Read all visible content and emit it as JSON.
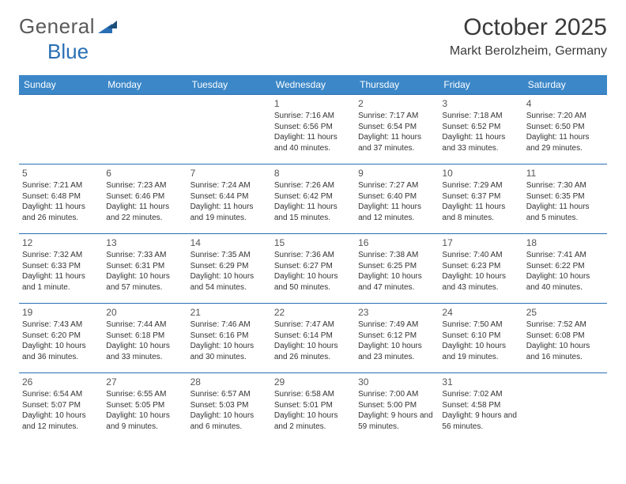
{
  "logo": {
    "part1": "General",
    "part2": "Blue"
  },
  "title": {
    "month": "October 2025",
    "location": "Markt Berolzheim, Germany"
  },
  "colors": {
    "header_bg": "#3b87c8",
    "header_text": "#ffffff",
    "border": "#2a6fb5",
    "page_bg": "#ffffff",
    "text": "#333333",
    "logo_gray": "#5a5a5a",
    "logo_blue": "#2a6fb5"
  },
  "weekdays": [
    "Sunday",
    "Monday",
    "Tuesday",
    "Wednesday",
    "Thursday",
    "Friday",
    "Saturday"
  ],
  "weeks": [
    [
      null,
      null,
      null,
      {
        "n": "1",
        "sr": "Sunrise: 7:16 AM",
        "ss": "Sunset: 6:56 PM",
        "dl": "Daylight: 11 hours and 40 minutes."
      },
      {
        "n": "2",
        "sr": "Sunrise: 7:17 AM",
        "ss": "Sunset: 6:54 PM",
        "dl": "Daylight: 11 hours and 37 minutes."
      },
      {
        "n": "3",
        "sr": "Sunrise: 7:18 AM",
        "ss": "Sunset: 6:52 PM",
        "dl": "Daylight: 11 hours and 33 minutes."
      },
      {
        "n": "4",
        "sr": "Sunrise: 7:20 AM",
        "ss": "Sunset: 6:50 PM",
        "dl": "Daylight: 11 hours and 29 minutes."
      }
    ],
    [
      {
        "n": "5",
        "sr": "Sunrise: 7:21 AM",
        "ss": "Sunset: 6:48 PM",
        "dl": "Daylight: 11 hours and 26 minutes."
      },
      {
        "n": "6",
        "sr": "Sunrise: 7:23 AM",
        "ss": "Sunset: 6:46 PM",
        "dl": "Daylight: 11 hours and 22 minutes."
      },
      {
        "n": "7",
        "sr": "Sunrise: 7:24 AM",
        "ss": "Sunset: 6:44 PM",
        "dl": "Daylight: 11 hours and 19 minutes."
      },
      {
        "n": "8",
        "sr": "Sunrise: 7:26 AM",
        "ss": "Sunset: 6:42 PM",
        "dl": "Daylight: 11 hours and 15 minutes."
      },
      {
        "n": "9",
        "sr": "Sunrise: 7:27 AM",
        "ss": "Sunset: 6:40 PM",
        "dl": "Daylight: 11 hours and 12 minutes."
      },
      {
        "n": "10",
        "sr": "Sunrise: 7:29 AM",
        "ss": "Sunset: 6:37 PM",
        "dl": "Daylight: 11 hours and 8 minutes."
      },
      {
        "n": "11",
        "sr": "Sunrise: 7:30 AM",
        "ss": "Sunset: 6:35 PM",
        "dl": "Daylight: 11 hours and 5 minutes."
      }
    ],
    [
      {
        "n": "12",
        "sr": "Sunrise: 7:32 AM",
        "ss": "Sunset: 6:33 PM",
        "dl": "Daylight: 11 hours and 1 minute."
      },
      {
        "n": "13",
        "sr": "Sunrise: 7:33 AM",
        "ss": "Sunset: 6:31 PM",
        "dl": "Daylight: 10 hours and 57 minutes."
      },
      {
        "n": "14",
        "sr": "Sunrise: 7:35 AM",
        "ss": "Sunset: 6:29 PM",
        "dl": "Daylight: 10 hours and 54 minutes."
      },
      {
        "n": "15",
        "sr": "Sunrise: 7:36 AM",
        "ss": "Sunset: 6:27 PM",
        "dl": "Daylight: 10 hours and 50 minutes."
      },
      {
        "n": "16",
        "sr": "Sunrise: 7:38 AM",
        "ss": "Sunset: 6:25 PM",
        "dl": "Daylight: 10 hours and 47 minutes."
      },
      {
        "n": "17",
        "sr": "Sunrise: 7:40 AM",
        "ss": "Sunset: 6:23 PM",
        "dl": "Daylight: 10 hours and 43 minutes."
      },
      {
        "n": "18",
        "sr": "Sunrise: 7:41 AM",
        "ss": "Sunset: 6:22 PM",
        "dl": "Daylight: 10 hours and 40 minutes."
      }
    ],
    [
      {
        "n": "19",
        "sr": "Sunrise: 7:43 AM",
        "ss": "Sunset: 6:20 PM",
        "dl": "Daylight: 10 hours and 36 minutes."
      },
      {
        "n": "20",
        "sr": "Sunrise: 7:44 AM",
        "ss": "Sunset: 6:18 PM",
        "dl": "Daylight: 10 hours and 33 minutes."
      },
      {
        "n": "21",
        "sr": "Sunrise: 7:46 AM",
        "ss": "Sunset: 6:16 PM",
        "dl": "Daylight: 10 hours and 30 minutes."
      },
      {
        "n": "22",
        "sr": "Sunrise: 7:47 AM",
        "ss": "Sunset: 6:14 PM",
        "dl": "Daylight: 10 hours and 26 minutes."
      },
      {
        "n": "23",
        "sr": "Sunrise: 7:49 AM",
        "ss": "Sunset: 6:12 PM",
        "dl": "Daylight: 10 hours and 23 minutes."
      },
      {
        "n": "24",
        "sr": "Sunrise: 7:50 AM",
        "ss": "Sunset: 6:10 PM",
        "dl": "Daylight: 10 hours and 19 minutes."
      },
      {
        "n": "25",
        "sr": "Sunrise: 7:52 AM",
        "ss": "Sunset: 6:08 PM",
        "dl": "Daylight: 10 hours and 16 minutes."
      }
    ],
    [
      {
        "n": "26",
        "sr": "Sunrise: 6:54 AM",
        "ss": "Sunset: 5:07 PM",
        "dl": "Daylight: 10 hours and 12 minutes."
      },
      {
        "n": "27",
        "sr": "Sunrise: 6:55 AM",
        "ss": "Sunset: 5:05 PM",
        "dl": "Daylight: 10 hours and 9 minutes."
      },
      {
        "n": "28",
        "sr": "Sunrise: 6:57 AM",
        "ss": "Sunset: 5:03 PM",
        "dl": "Daylight: 10 hours and 6 minutes."
      },
      {
        "n": "29",
        "sr": "Sunrise: 6:58 AM",
        "ss": "Sunset: 5:01 PM",
        "dl": "Daylight: 10 hours and 2 minutes."
      },
      {
        "n": "30",
        "sr": "Sunrise: 7:00 AM",
        "ss": "Sunset: 5:00 PM",
        "dl": "Daylight: 9 hours and 59 minutes."
      },
      {
        "n": "31",
        "sr": "Sunrise: 7:02 AM",
        "ss": "Sunset: 4:58 PM",
        "dl": "Daylight: 9 hours and 56 minutes."
      },
      null
    ]
  ]
}
